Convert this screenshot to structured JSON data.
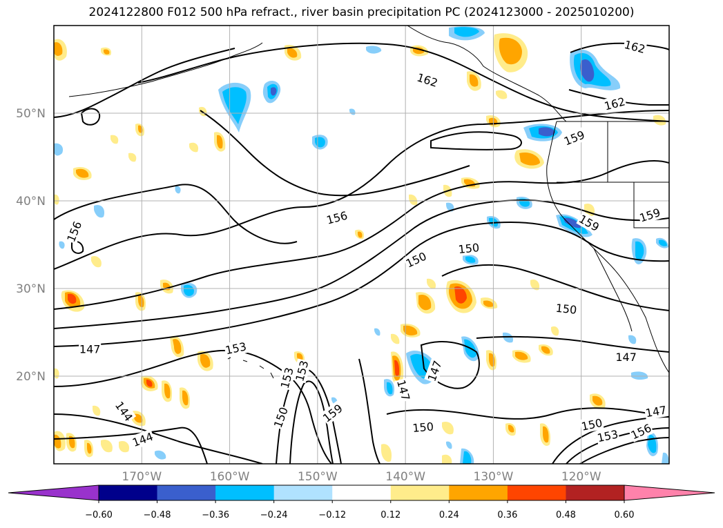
{
  "title": "2024122800 F012 500 hPa refract., river basin precipitation PC (2024123000 - 2025010200)",
  "map": {
    "lat_range": [
      10,
      60
    ],
    "lon_range": [
      -180,
      -110
    ],
    "lat_labels": [
      "20°N",
      "30°N",
      "40°N",
      "50°N"
    ],
    "lat_values": [
      20,
      30,
      40,
      50
    ],
    "lon_labels": [
      "170°W",
      "160°W",
      "150°W",
      "140°W",
      "130°W",
      "120°W"
    ],
    "lon_values": [
      -170,
      -160,
      -150,
      -140,
      -130,
      -120
    ],
    "grid": true,
    "contour_labels": [
      {
        "text": "162",
        "lon": -137.5,
        "lat": 53.8,
        "rot": 18
      },
      {
        "text": "162",
        "lon": -113.9,
        "lat": 57.6,
        "rot": 15
      },
      {
        "text": "162",
        "lon": -116.2,
        "lat": 51.1,
        "rot": -15
      },
      {
        "text": "159",
        "lon": -120.8,
        "lat": 47.2,
        "rot": -22
      },
      {
        "text": "159",
        "lon": -119.1,
        "lat": 37.5,
        "rot": 30
      },
      {
        "text": "159",
        "lon": -112.2,
        "lat": 38.4,
        "rot": -18
      },
      {
        "text": "156",
        "lon": -147.8,
        "lat": 38.1,
        "rot": -15
      },
      {
        "text": "156",
        "lon": -177.7,
        "lat": 36.5,
        "rot": -68
      },
      {
        "text": "150",
        "lon": -138.8,
        "lat": 33.3,
        "rot": -25
      },
      {
        "text": "150",
        "lon": -132.8,
        "lat": 34.6,
        "rot": -6
      },
      {
        "text": "150",
        "lon": -121.7,
        "lat": 27.7,
        "rot": 6
      },
      {
        "text": "150",
        "lon": -138.0,
        "lat": 14.2,
        "rot": -5
      },
      {
        "text": "150",
        "lon": -118.8,
        "lat": 14.5,
        "rot": -12
      },
      {
        "text": "153",
        "lon": -159.3,
        "lat": 23.2,
        "rot": -12
      },
      {
        "text": "153",
        "lon": -117.0,
        "lat": 13.2,
        "rot": -12
      },
      {
        "text": "153",
        "lon": -153.5,
        "lat": 19.8,
        "rot": -75
      },
      {
        "text": "153",
        "lon": -151.8,
        "lat": 20.6,
        "rot": -75
      },
      {
        "text": "156",
        "lon": -113.2,
        "lat": 13.7,
        "rot": -25
      },
      {
        "text": "159",
        "lon": -148.3,
        "lat": 15.8,
        "rot": -38
      },
      {
        "text": "150",
        "lon": -154.2,
        "lat": 15.3,
        "rot": -70
      },
      {
        "text": "147",
        "lon": -175.9,
        "lat": 23.1,
        "rot": 0
      },
      {
        "text": "147",
        "lon": -114.9,
        "lat": 22.2,
        "rot": 0
      },
      {
        "text": "147",
        "lon": -111.5,
        "lat": 16.0,
        "rot": -10
      },
      {
        "text": "147",
        "lon": -140.2,
        "lat": 18.4,
        "rot": 75
      },
      {
        "text": "147",
        "lon": -136.7,
        "lat": 20.6,
        "rot": -70
      },
      {
        "text": "144",
        "lon": -172.0,
        "lat": 16.0,
        "rot": 55
      },
      {
        "text": "144",
        "lon": -169.9,
        "lat": 12.8,
        "rot": -20
      }
    ]
  },
  "legend": {
    "ticks": [
      "−0.60",
      "−0.48",
      "−0.36",
      "−0.24",
      "−0.12",
      "0.12",
      "0.24",
      "0.36",
      "0.48",
      "0.60"
    ],
    "colors": {
      "below": "#9932CC",
      "bins": [
        "#00008B",
        "#3A5FCD",
        "#00BFFF",
        "#B0E2FF",
        "#FFFFFF",
        "#FFEC8B",
        "#FFA500",
        "#FF4500",
        "#B22222"
      ],
      "above": "#FF82AB"
    }
  }
}
